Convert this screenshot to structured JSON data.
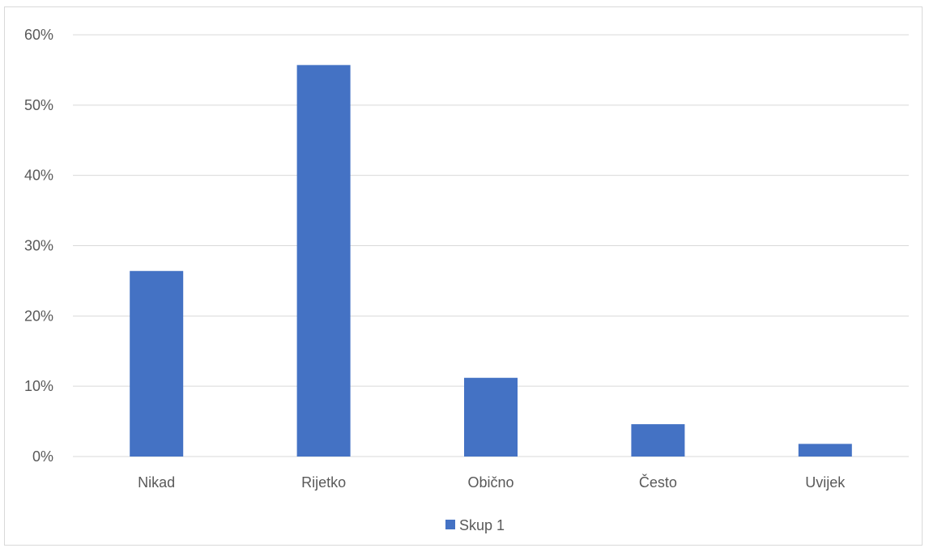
{
  "chart_data": {
    "type": "bar",
    "title": "",
    "xlabel": "",
    "ylabel": "",
    "categories": [
      "Nikad",
      "Rijetko",
      "Obično",
      "Često",
      "Uvijek"
    ],
    "series": [
      {
        "name": "Skup 1",
        "values": [
          0.264,
          0.557,
          0.112,
          0.046,
          0.018
        ],
        "color": "#4472c4"
      }
    ],
    "ylim": [
      0,
      0.6
    ],
    "yticks": [
      0,
      0.1,
      0.2,
      0.3,
      0.4,
      0.5,
      0.6
    ],
    "ytick_labels": [
      "0%",
      "10%",
      "20%",
      "30%",
      "40%",
      "50%",
      "60%"
    ],
    "grid": true,
    "legend": "bottom",
    "gridline_color": "#d9d9d9",
    "axis_color": "#d9d9d9",
    "text_color": "#595959"
  }
}
